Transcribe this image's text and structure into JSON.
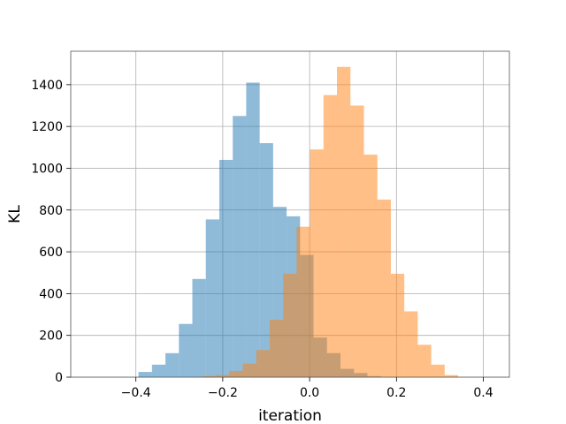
{
  "chart_data": {
    "type": "bar",
    "title": "",
    "xlabel": "iteration",
    "ylabel": "KL",
    "xlim": [
      -0.55,
      0.46
    ],
    "ylim": [
      0,
      1560
    ],
    "xticks": [
      -0.4,
      -0.2,
      0.0,
      0.2,
      0.4
    ],
    "xtick_labels": [
      "−0.4",
      "−0.2",
      "0.0",
      "0.2",
      "0.4"
    ],
    "yticks": [
      0,
      200,
      400,
      600,
      800,
      1000,
      1200,
      1400
    ],
    "ytick_labels": [
      "0",
      "200",
      "400",
      "600",
      "800",
      "1000",
      "1200",
      "1400"
    ],
    "grid": true,
    "legend": "none",
    "bin_width": 0.031,
    "series": [
      {
        "color": "#1f77b4",
        "opacity": 0.5,
        "bin_starts": [
          -0.394,
          -0.363,
          -0.332,
          -0.301,
          -0.27,
          -0.239,
          -0.208,
          -0.177,
          -0.146,
          -0.115,
          -0.084,
          -0.053,
          -0.022,
          0.009,
          0.04,
          0.071,
          0.102,
          0.133
        ],
        "values": [
          25,
          60,
          115,
          255,
          470,
          755,
          1040,
          1250,
          1410,
          1120,
          815,
          770,
          585,
          190,
          115,
          40,
          20,
          5
        ]
      },
      {
        "color": "#ff7f0e",
        "opacity": 0.5,
        "bin_starts": [
          -0.247,
          -0.216,
          -0.185,
          -0.154,
          -0.123,
          -0.092,
          -0.061,
          -0.03,
          0.001,
          0.032,
          0.063,
          0.094,
          0.125,
          0.156,
          0.187,
          0.218,
          0.249,
          0.28,
          0.311
        ],
        "values": [
          5,
          10,
          30,
          65,
          130,
          275,
          495,
          720,
          1090,
          1350,
          1485,
          1300,
          1065,
          850,
          495,
          315,
          155,
          60,
          10
        ]
      }
    ]
  }
}
